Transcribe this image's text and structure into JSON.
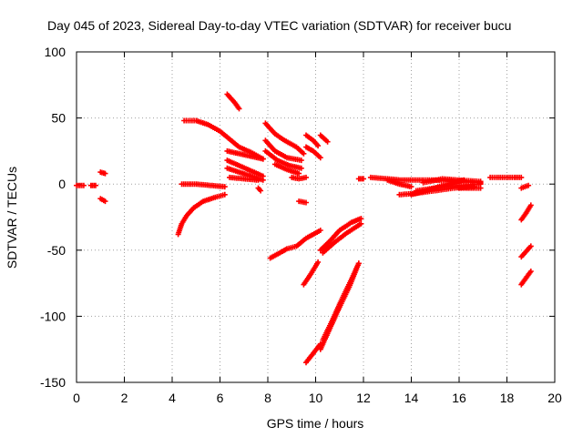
{
  "chart_data": {
    "type": "scatter",
    "title": "Day 045 of 2023, Sidereal Day-to-day VTEC variation (SDTVAR) for receiver bucu",
    "xlabel": "GPS time / hours",
    "ylabel": "SDTVAR / TECUs",
    "xlim": [
      0,
      20
    ],
    "ylim": [
      -150,
      100
    ],
    "xticks": [
      "0",
      "2",
      "4",
      "6",
      "8",
      "10",
      "12",
      "14",
      "16",
      "18",
      "20"
    ],
    "yticks": [
      "100",
      "50",
      "0",
      "-50",
      "-100",
      "-150"
    ],
    "grid": true,
    "marker_color": "#ff0000",
    "series": [
      {
        "name": "s1",
        "points": [
          [
            0.0,
            -1
          ],
          [
            0.3,
            -1
          ]
        ]
      },
      {
        "name": "s2",
        "points": [
          [
            0.6,
            -1
          ],
          [
            0.8,
            -1
          ]
        ]
      },
      {
        "name": "s3",
        "points": [
          [
            1.0,
            9
          ],
          [
            1.2,
            8
          ]
        ]
      },
      {
        "name": "s4",
        "points": [
          [
            1.0,
            -11
          ],
          [
            1.2,
            -13
          ]
        ]
      },
      {
        "name": "s5",
        "points": [
          [
            4.25,
            -38
          ],
          [
            4.4,
            -30
          ],
          [
            4.6,
            -24
          ],
          [
            4.9,
            -18
          ],
          [
            5.3,
            -13
          ],
          [
            5.8,
            -10
          ],
          [
            6.2,
            -8
          ]
        ]
      },
      {
        "name": "s6",
        "points": [
          [
            4.4,
            0
          ],
          [
            5.0,
            0
          ],
          [
            5.6,
            -1
          ],
          [
            6.2,
            -2
          ]
        ]
      },
      {
        "name": "s7",
        "points": [
          [
            4.5,
            48
          ],
          [
            5.0,
            48
          ],
          [
            5.5,
            45
          ],
          [
            6.0,
            40
          ],
          [
            6.4,
            34
          ],
          [
            6.8,
            28
          ],
          [
            7.3,
            24
          ],
          [
            7.8,
            19
          ]
        ]
      },
      {
        "name": "s8",
        "points": [
          [
            6.3,
            68
          ],
          [
            6.6,
            62
          ],
          [
            6.8,
            57
          ]
        ]
      },
      {
        "name": "s9",
        "points": [
          [
            6.3,
            25
          ],
          [
            6.8,
            23
          ],
          [
            7.3,
            21
          ],
          [
            7.8,
            19
          ]
        ]
      },
      {
        "name": "s10",
        "points": [
          [
            6.3,
            18
          ],
          [
            6.8,
            14
          ],
          [
            7.3,
            10
          ],
          [
            7.8,
            6
          ]
        ]
      },
      {
        "name": "s11",
        "points": [
          [
            6.3,
            12
          ],
          [
            6.8,
            9
          ],
          [
            7.3,
            6
          ],
          [
            7.8,
            3
          ]
        ]
      },
      {
        "name": "s12",
        "points": [
          [
            6.4,
            5
          ],
          [
            7.0,
            4
          ],
          [
            7.6,
            3
          ]
        ]
      },
      {
        "name": "s13",
        "points": [
          [
            7.6,
            -3
          ],
          [
            7.7,
            -5
          ]
        ]
      },
      {
        "name": "s14",
        "points": [
          [
            7.9,
            46
          ],
          [
            8.3,
            38
          ],
          [
            8.7,
            33
          ],
          [
            9.2,
            28
          ],
          [
            9.5,
            23
          ]
        ]
      },
      {
        "name": "s15",
        "points": [
          [
            7.9,
            33
          ],
          [
            8.3,
            25
          ],
          [
            8.8,
            20
          ],
          [
            9.4,
            18
          ]
        ]
      },
      {
        "name": "s16",
        "points": [
          [
            7.9,
            25
          ],
          [
            8.4,
            18
          ],
          [
            8.9,
            14
          ],
          [
            9.4,
            12
          ]
        ]
      },
      {
        "name": "s17",
        "points": [
          [
            8.3,
            15
          ],
          [
            8.8,
            11
          ],
          [
            9.3,
            8
          ]
        ]
      },
      {
        "name": "s18",
        "points": [
          [
            9.0,
            5
          ],
          [
            9.3,
            4
          ],
          [
            9.6,
            5
          ]
        ]
      },
      {
        "name": "s19",
        "points": [
          [
            9.3,
            -13
          ],
          [
            9.6,
            -14
          ]
        ]
      },
      {
        "name": "s20",
        "points": [
          [
            9.6,
            37
          ],
          [
            9.9,
            33
          ],
          [
            10.1,
            29
          ]
        ]
      },
      {
        "name": "s21",
        "points": [
          [
            9.6,
            28
          ],
          [
            9.9,
            25
          ],
          [
            10.2,
            20
          ]
        ]
      },
      {
        "name": "s22",
        "points": [
          [
            10.2,
            37
          ],
          [
            10.5,
            32
          ]
        ]
      },
      {
        "name": "s23",
        "points": [
          [
            8.1,
            -56
          ],
          [
            8.5,
            -52
          ],
          [
            8.8,
            -49
          ],
          [
            9.2,
            -47
          ],
          [
            9.6,
            -41
          ],
          [
            10.0,
            -37
          ],
          [
            10.2,
            -35
          ]
        ]
      },
      {
        "name": "s24",
        "points": [
          [
            9.5,
            -76
          ],
          [
            9.8,
            -68
          ],
          [
            10.1,
            -59
          ]
        ]
      },
      {
        "name": "s25",
        "points": [
          [
            9.6,
            -135
          ],
          [
            9.9,
            -128
          ],
          [
            10.2,
            -121
          ]
        ]
      },
      {
        "name": "s26",
        "points": [
          [
            10.2,
            -50
          ],
          [
            10.6,
            -43
          ],
          [
            11.0,
            -35
          ],
          [
            11.5,
            -29
          ],
          [
            11.9,
            -26
          ]
        ]
      },
      {
        "name": "s27",
        "points": [
          [
            10.3,
            -52
          ],
          [
            10.8,
            -44
          ],
          [
            11.3,
            -37
          ],
          [
            11.9,
            -30
          ]
        ]
      },
      {
        "name": "s28",
        "points": [
          [
            10.2,
            -125
          ],
          [
            10.6,
            -109
          ],
          [
            11.0,
            -93
          ],
          [
            11.4,
            -78
          ],
          [
            11.8,
            -60
          ]
        ]
      },
      {
        "name": "s29",
        "points": [
          [
            10.3,
            -118
          ],
          [
            10.7,
            -103
          ],
          [
            11.1,
            -87
          ],
          [
            11.5,
            -72
          ],
          [
            11.8,
            -60
          ]
        ]
      },
      {
        "name": "s30",
        "points": [
          [
            11.8,
            4
          ],
          [
            12.0,
            4
          ]
        ]
      },
      {
        "name": "s31",
        "points": [
          [
            12.3,
            5
          ],
          [
            13.0,
            4
          ],
          [
            13.6,
            3
          ],
          [
            14.2,
            3
          ],
          [
            15.0,
            3
          ],
          [
            16.0,
            2
          ],
          [
            16.9,
            1
          ]
        ]
      },
      {
        "name": "s32",
        "points": [
          [
            13.0,
            3
          ],
          [
            13.5,
            0
          ],
          [
            14.0,
            -2
          ]
        ]
      },
      {
        "name": "s33",
        "points": [
          [
            13.5,
            -8
          ],
          [
            14.2,
            -7
          ],
          [
            15.0,
            -5
          ],
          [
            15.8,
            -3
          ],
          [
            16.6,
            -2
          ]
        ]
      },
      {
        "name": "s34",
        "points": [
          [
            14.2,
            -5
          ],
          [
            15.0,
            -3
          ],
          [
            16.0,
            -1
          ],
          [
            16.9,
            0
          ]
        ]
      },
      {
        "name": "s35",
        "points": [
          [
            14.5,
            1
          ],
          [
            15.3,
            4
          ],
          [
            16.0,
            3
          ],
          [
            16.9,
            2
          ]
        ]
      },
      {
        "name": "s36",
        "points": [
          [
            14.0,
            -8
          ],
          [
            14.8,
            -4
          ],
          [
            15.5,
            0
          ],
          [
            16.2,
            3
          ]
        ]
      },
      {
        "name": "s37",
        "points": [
          [
            16.0,
            -3
          ],
          [
            16.5,
            -3
          ],
          [
            16.9,
            -3
          ]
        ]
      },
      {
        "name": "s38",
        "points": [
          [
            17.3,
            5
          ],
          [
            17.8,
            5
          ],
          [
            18.3,
            5
          ],
          [
            18.6,
            5
          ]
        ]
      },
      {
        "name": "s39",
        "points": [
          [
            18.6,
            -3
          ],
          [
            18.9,
            -1
          ]
        ]
      },
      {
        "name": "s40",
        "points": [
          [
            18.6,
            -27
          ],
          [
            18.8,
            -22
          ],
          [
            19.0,
            -16
          ]
        ]
      },
      {
        "name": "s41",
        "points": [
          [
            18.6,
            -55
          ],
          [
            18.8,
            -51
          ],
          [
            19.0,
            -47
          ]
        ]
      },
      {
        "name": "s42",
        "points": [
          [
            18.6,
            -76
          ],
          [
            18.8,
            -71
          ],
          [
            19.0,
            -66
          ]
        ]
      }
    ]
  }
}
